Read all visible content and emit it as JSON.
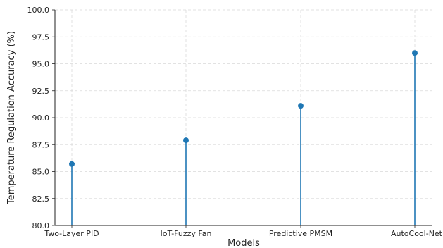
{
  "chart_data": {
    "type": "stem",
    "title": "",
    "xlabel": "Models",
    "ylabel": "Temperature Regulation Accuracy (%)",
    "categories": [
      "Two-Layer PID",
      "IoT-Fuzzy Fan",
      "Predictive PMSM",
      "AutoCool-Net"
    ],
    "values": [
      85.7,
      87.9,
      91.1,
      96.0
    ],
    "ylim": [
      80.0,
      100.0
    ],
    "yticks": [
      "80.0",
      "82.5",
      "85.0",
      "87.5",
      "90.0",
      "92.5",
      "95.0",
      "97.5",
      "100.0"
    ],
    "grid": true,
    "colors": {
      "stem": "#1f77b4",
      "grid": "#d9d9d9",
      "axis": "#222222"
    }
  }
}
